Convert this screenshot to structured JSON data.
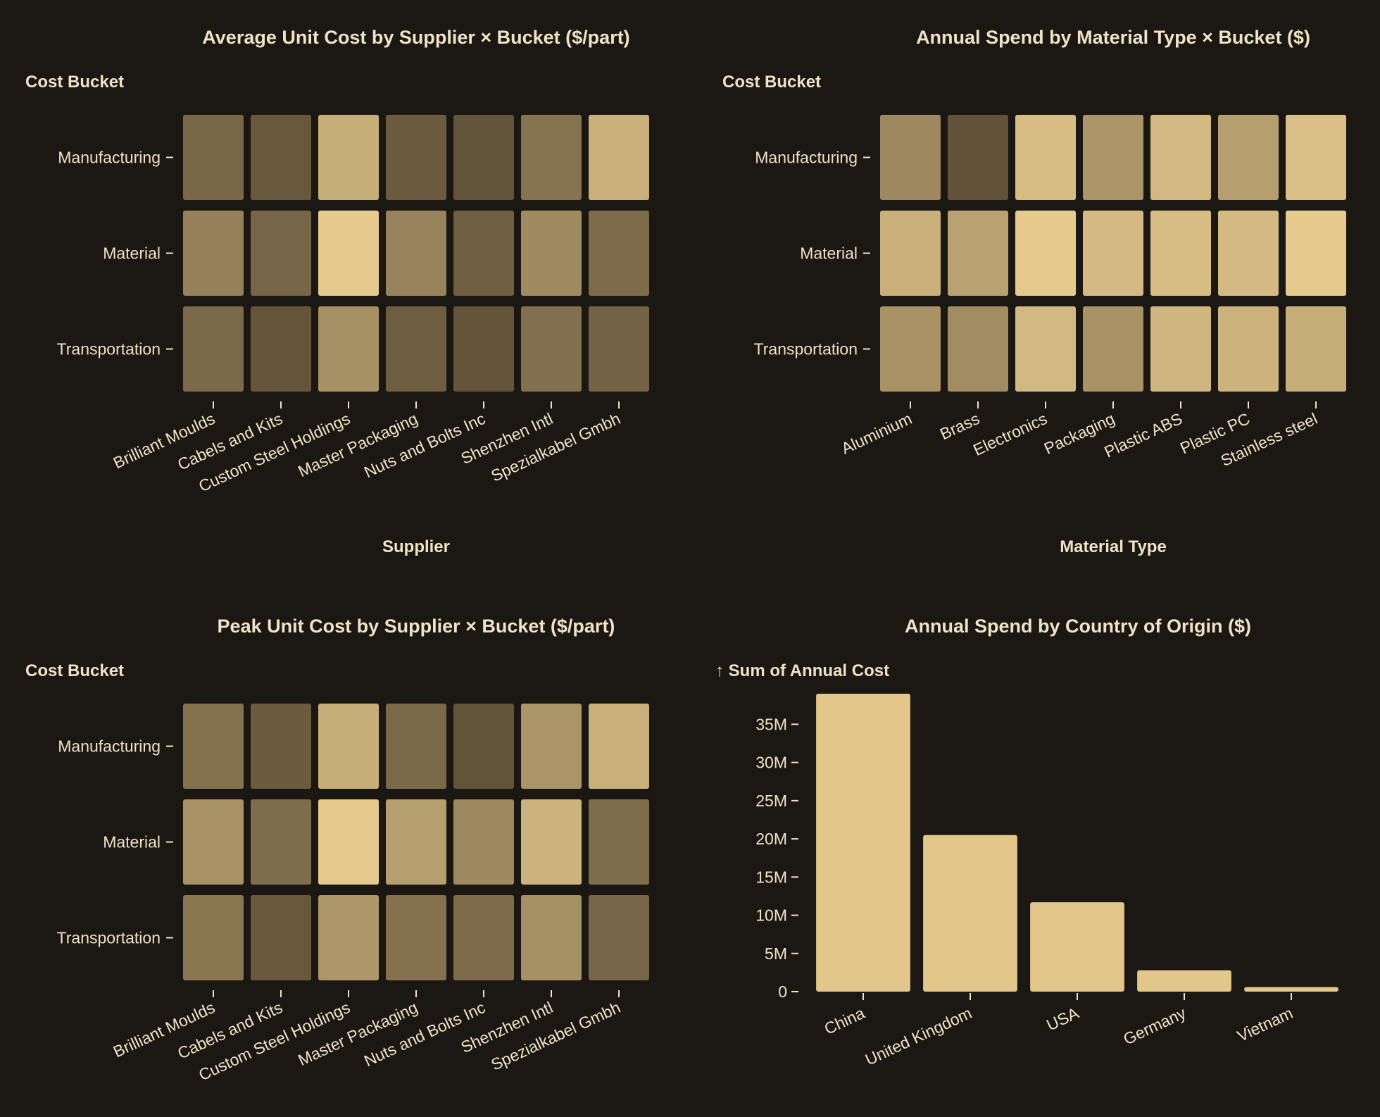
{
  "colors": {
    "background": "#1b1712",
    "text": "#efe3c7",
    "bar": "#e3c78a",
    "heat_low": "#5a4c34",
    "heat_high": "#e5c98d"
  },
  "chart_data": [
    {
      "id": "avg-unit-cost",
      "type": "heatmap",
      "title": "Average Unit Cost by Supplier × Bucket ($/part)",
      "xlabel": "Supplier",
      "ylabel": "Cost Bucket",
      "x": [
        "Brilliant Moulds",
        "Cabels and Kits",
        "Custom Steel Holdings",
        "Master Packaging",
        "Nuts and Bolts Inc",
        "Shenzhen Intl",
        "Spezialkabel Gmbh"
      ],
      "y": [
        "Manufacturing",
        "Material",
        "Transportation"
      ],
      "values": [
        [
          0.22,
          0.1,
          0.78,
          0.12,
          0.06,
          0.32,
          0.8
        ],
        [
          0.42,
          0.2,
          1.0,
          0.44,
          0.15,
          0.5,
          0.25
        ],
        [
          0.24,
          0.08,
          0.55,
          0.14,
          0.07,
          0.28,
          0.19
        ]
      ]
    },
    {
      "id": "annual-spend-material",
      "type": "heatmap",
      "title": "Annual Spend by Material Type × Bucket ($)",
      "xlabel": "Material Type",
      "ylabel": "Cost Bucket",
      "x": [
        "Aluminium",
        "Brass",
        "Electronics",
        "Packaging",
        "Plastic ABS",
        "Plastic PC",
        "Stainless steel"
      ],
      "y": [
        "Manufacturing",
        "Material",
        "Transportation"
      ],
      "values": [
        [
          0.48,
          0.05,
          0.9,
          0.58,
          0.86,
          0.66,
          0.92
        ],
        [
          0.8,
          0.68,
          1.0,
          0.88,
          0.9,
          0.88,
          1.0
        ],
        [
          0.56,
          0.52,
          0.86,
          0.56,
          0.84,
          0.82,
          0.78
        ]
      ]
    },
    {
      "id": "peak-unit-cost",
      "type": "heatmap",
      "title": "Peak Unit Cost by Supplier × Bucket ($/part)",
      "xlabel": "",
      "ylabel": "Cost Bucket",
      "x": [
        "Brilliant Moulds",
        "Cabels and Kits",
        "Custom Steel Holdings",
        "Master Packaging",
        "Nuts and Bolts Inc",
        "Shenzhen Intl",
        "Spezialkabel Gmbh"
      ],
      "y": [
        "Manufacturing",
        "Material",
        "Transportation"
      ],
      "values": [
        [
          0.3,
          0.12,
          0.78,
          0.24,
          0.06,
          0.58,
          0.8
        ],
        [
          0.56,
          0.26,
          1.0,
          0.66,
          0.48,
          0.82,
          0.26
        ],
        [
          0.34,
          0.1,
          0.6,
          0.3,
          0.25,
          0.55,
          0.2
        ]
      ]
    },
    {
      "id": "annual-spend-country",
      "type": "bar",
      "title": "Annual Spend by Country of Origin ($)",
      "ylabel": "↑ Sum of Annual Cost",
      "xlabel": "",
      "categories": [
        "China",
        "United Kingdom",
        "USA",
        "Germany",
        "Vietnam"
      ],
      "values": [
        39000000,
        20500000,
        11700000,
        2800000,
        600000
      ],
      "ylim": [
        0,
        39000000
      ],
      "yticks": [
        0,
        5000000,
        10000000,
        15000000,
        20000000,
        25000000,
        30000000,
        35000000
      ],
      "ytick_labels": [
        "0",
        "5M",
        "10M",
        "15M",
        "20M",
        "25M",
        "30M",
        "35M"
      ],
      "grid": false
    }
  ]
}
